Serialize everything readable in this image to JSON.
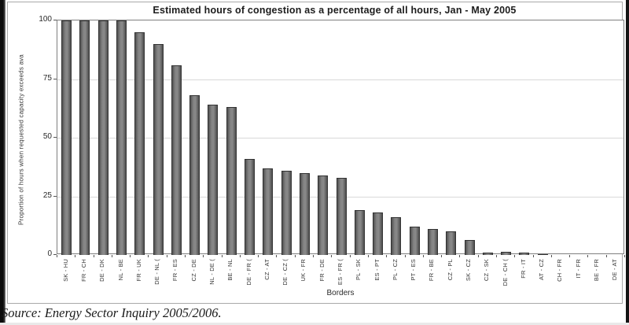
{
  "page": {
    "source_note": "Source: Energy Sector Inquiry 2005/2006."
  },
  "chart_data": {
    "type": "bar",
    "title": "Estimated hours of congestion as a percentage of all hours, Jan - May 2005",
    "xlabel": "Borders",
    "ylabel": "Proportion of hours when requested capacity exceeds ava",
    "ylim": [
      0,
      100
    ],
    "yticks": [
      0,
      25,
      50,
      75,
      100
    ],
    "grid": true,
    "legend": "none",
    "bar_color": "#7c7c7c",
    "bar_border_color": "#333333",
    "categories": [
      "SK - HU",
      "FR - CH",
      "DE - DK",
      "NL - BE",
      "FR - UK",
      "DE - NL (",
      "FR - ES",
      "CZ - DE",
      "NL - DE (",
      "BE - NL",
      "DE - FR (",
      "CZ - AT",
      "DE - CZ (",
      "UK - FR",
      "FR - DE",
      "ES - FR (",
      "PL - SK",
      "ES - PT",
      "PL - CZ",
      "PT - ES",
      "FR - BE",
      "CZ - PL",
      "SK - CZ",
      "CZ - SK",
      "DE - CH (",
      "FR - IT",
      "AT - CZ",
      "CH - FR",
      "IT - FR",
      "BE - FR",
      "DE - AT"
    ],
    "values": [
      100,
      100,
      100,
      100,
      95,
      90,
      81,
      68,
      64,
      63,
      41,
      37,
      36,
      35,
      34,
      33,
      19,
      18,
      16,
      12,
      11,
      10,
      6.5,
      1,
      1.5,
      1,
      0.5,
      0,
      0,
      0,
      0
    ]
  }
}
